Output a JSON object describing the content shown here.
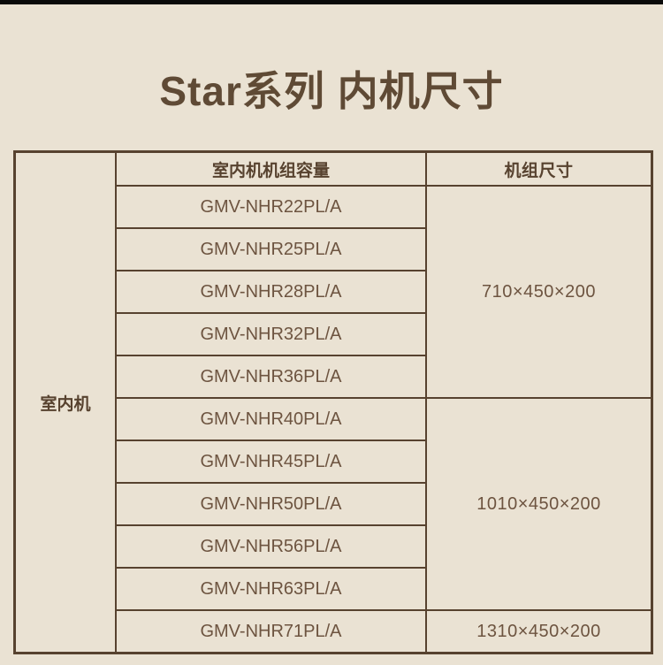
{
  "page": {
    "title": "Star系列 内机尺寸",
    "background_color": "#eae2d3",
    "top_bar_color": "#0a0a0a",
    "accent_border_color": "#57422f",
    "text_color": "#6d5440"
  },
  "table": {
    "row_group_label": "室内机",
    "columns": {
      "capacity": "室内机机组容量",
      "dimension": "机组尺寸"
    },
    "groups": [
      {
        "models": [
          "GMV-NHR22PL/A",
          "GMV-NHR25PL/A",
          "GMV-NHR28PL/A",
          "GMV-NHR32PL/A",
          "GMV-NHR36PL/A"
        ],
        "dimension": "710×450×200"
      },
      {
        "models": [
          "GMV-NHR40PL/A",
          "GMV-NHR45PL/A",
          "GMV-NHR50PL/A",
          "GMV-NHR56PL/A",
          "GMV-NHR63PL/A"
        ],
        "dimension": "1010×450×200"
      },
      {
        "models": [
          "GMV-NHR71PL/A"
        ],
        "dimension": "1310×450×200"
      }
    ]
  }
}
